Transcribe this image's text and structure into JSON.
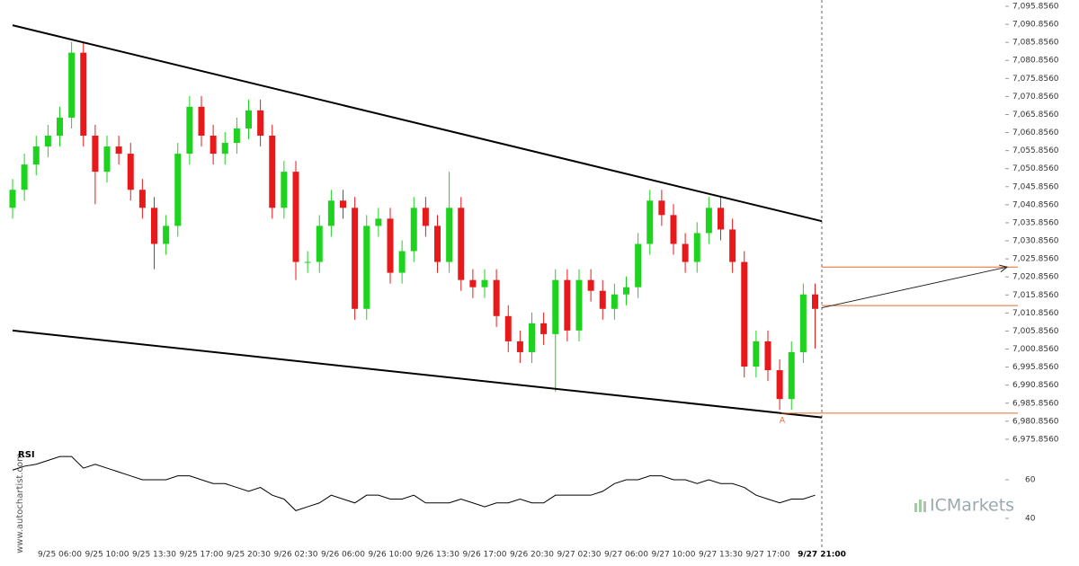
{
  "chart_data": {
    "type": "candlestick",
    "categories": [
      null,
      null,
      null,
      null,
      "9/25 06:00",
      null,
      null,
      null,
      "9/25 10:00",
      null,
      null,
      null,
      "9/25 13:30",
      null,
      null,
      null,
      "9/25 17:00",
      null,
      null,
      null,
      "9/25 20:30",
      null,
      null,
      null,
      "9/26 02:30",
      null,
      null,
      null,
      "9/26 06:00",
      null,
      null,
      null,
      "9/26 10:00",
      null,
      null,
      null,
      "9/26 13:30",
      null,
      null,
      null,
      "9/26 17:00",
      null,
      null,
      null,
      "9/26 20:30",
      null,
      null,
      null,
      "9/27 02:30",
      null,
      null,
      null,
      "9/27 06:00",
      null,
      null,
      null,
      "9/27 10:00",
      null,
      null,
      null,
      "9/27 13:30",
      null,
      null,
      null,
      "9/27 17:00",
      null,
      null,
      null,
      "9/27 21:00"
    ],
    "open": [
      7040,
      7045,
      7052,
      7057,
      7060,
      7065,
      7083,
      7060,
      7050,
      7057,
      7055,
      7045,
      7040,
      7030,
      7035,
      7055,
      7068,
      7060,
      7055,
      7058,
      7062,
      7067,
      7060,
      7040,
      7050,
      7025,
      7025,
      7035,
      7042,
      7040,
      7012,
      7035,
      7037,
      7022,
      7028,
      7040,
      7035,
      7025,
      7040,
      7020,
      7018,
      7020,
      7010,
      7003,
      7000,
      7008,
      7005,
      7020,
      7006,
      7020,
      7017,
      7012,
      7016,
      7018,
      7030,
      7042,
      7038,
      7030,
      7025,
      7033,
      7040,
      7034,
      7025,
      6996,
      7003,
      6995,
      6987,
      7000,
      7016
    ],
    "high": [
      7048,
      7055,
      7060,
      7063,
      7068,
      7086,
      7086,
      7063,
      7060,
      7060,
      7058,
      7048,
      7043,
      7038,
      7058,
      7071,
      7071,
      7063,
      7061,
      7065,
      7070,
      7070,
      7063,
      7053,
      7053,
      7028,
      7038,
      7045,
      7045,
      7043,
      7038,
      7040,
      7040,
      7031,
      7043,
      7043,
      7038,
      7050,
      7043,
      7023,
      7023,
      7023,
      7013,
      7006,
      7011,
      7011,
      7023,
      7023,
      7023,
      7023,
      7020,
      7019,
      7021,
      7033,
      7045,
      7045,
      7041,
      7033,
      7036,
      7043,
      7043,
      7037,
      7028,
      7006,
      7006,
      6998,
      7003,
      7019,
      7019
    ],
    "low": [
      7037,
      7042,
      7049,
      7054,
      7057,
      7062,
      7057,
      7041,
      7047,
      7052,
      7042,
      7037,
      7023,
      7027,
      7032,
      7052,
      7057,
      7052,
      7052,
      7055,
      7059,
      7057,
      7037,
      7037,
      7020,
      7022,
      7022,
      7032,
      7037,
      7009,
      7009,
      7032,
      7019,
      7019,
      7025,
      7032,
      7022,
      7022,
      7017,
      7015,
      7015,
      7007,
      7000,
      6997,
      6997,
      7002,
      6989,
      7003,
      7003,
      7014,
      7009,
      7009,
      7013,
      7015,
      7027,
      7035,
      7027,
      7022,
      7022,
      7030,
      7031,
      7022,
      6993,
      6993,
      6992,
      6984,
      6984,
      6997,
      7001
    ],
    "close": [
      7045,
      7052,
      7057,
      7060,
      7065,
      7083,
      7060,
      7050,
      7057,
      7055,
      7045,
      7040,
      7030,
      7035,
      7055,
      7068,
      7060,
      7055,
      7058,
      7062,
      7067,
      7060,
      7040,
      7050,
      7025,
      7025,
      7035,
      7042,
      7040,
      7012,
      7035,
      7037,
      7022,
      7028,
      7040,
      7035,
      7025,
      7040,
      7020,
      7018,
      7020,
      7010,
      7003,
      7000,
      7008,
      7005,
      7020,
      7006,
      7020,
      7017,
      7012,
      7016,
      7018,
      7030,
      7042,
      7038,
      7030,
      7025,
      7033,
      7040,
      7034,
      7025,
      6996,
      7003,
      6995,
      6987,
      7000,
      7016,
      7012
    ],
    "up_color": "#1ed31e",
    "down_color": "#e8191a",
    "ylim": [
      6973.1,
      7097.6
    ],
    "yticks": [
      {
        "value": 6975.856,
        "label": "6,975.8560"
      },
      {
        "value": 6980.856,
        "label": "6,980.8560"
      },
      {
        "value": 6985.856,
        "label": "6,985.8560"
      },
      {
        "value": 6990.856,
        "label": "6,990.8560"
      },
      {
        "value": 6995.856,
        "label": "6,995.8560"
      },
      {
        "value": 7000.856,
        "label": "7,000.8560"
      },
      {
        "value": 7005.856,
        "label": "7,005.8560"
      },
      {
        "value": 7010.856,
        "label": "7,010.8560"
      },
      {
        "value": 7015.856,
        "label": "7,015.8560"
      },
      {
        "value": 7020.856,
        "label": "7,020.8560"
      },
      {
        "value": 7025.856,
        "label": "7,025.8560"
      },
      {
        "value": 7030.856,
        "label": "7,030.8560"
      },
      {
        "value": 7035.856,
        "label": "7,035.8560"
      },
      {
        "value": 7040.856,
        "label": "7,040.8560"
      },
      {
        "value": 7045.856,
        "label": "7,045.8560"
      },
      {
        "value": 7050.856,
        "label": "7,050.8560"
      },
      {
        "value": 7055.856,
        "label": "7,055.8560"
      },
      {
        "value": 7060.856,
        "label": "7,060.8560"
      },
      {
        "value": 7065.856,
        "label": "7,065.8560"
      },
      {
        "value": 7070.856,
        "label": "7,070.8560"
      },
      {
        "value": 7075.856,
        "label": "7,075.8560"
      },
      {
        "value": 7080.856,
        "label": "7,080.8560"
      },
      {
        "value": 7085.856,
        "label": "7,085.8560"
      },
      {
        "value": 7090.856,
        "label": "7,090.8560"
      },
      {
        "value": 7095.856,
        "label": "7,095.8560"
      }
    ],
    "channel": {
      "upper": [
        7090.6,
        7036.3
      ],
      "lower": [
        7006.0,
        6981.9
      ],
      "color": "#000000"
    },
    "levels": [
      7023.6,
      7012.9,
      6983.1
    ],
    "level_color": "#e8682a",
    "forecast": [
      7012.3,
      7023.6
    ],
    "point_label": "A",
    "rsi": {
      "label": "RSI",
      "values": [
        65,
        67,
        68,
        70,
        72,
        72,
        66,
        68,
        66,
        64,
        62,
        60,
        60,
        60,
        62,
        62,
        60,
        58,
        58,
        56,
        54,
        56,
        52,
        50,
        44,
        46,
        48,
        52,
        50,
        48,
        52,
        52,
        50,
        50,
        52,
        48,
        48,
        48,
        50,
        48,
        46,
        48,
        48,
        50,
        48,
        48,
        52,
        52,
        52,
        52,
        54,
        58,
        60,
        60,
        62,
        62,
        60,
        60,
        58,
        60,
        58,
        58,
        56,
        52,
        50,
        48,
        50,
        50,
        52
      ],
      "ylim": [
        29.3,
        75.8
      ],
      "yticks": [
        40,
        60
      ]
    }
  },
  "watermark": "www.autochartist.com",
  "brand": "ICMarkets"
}
